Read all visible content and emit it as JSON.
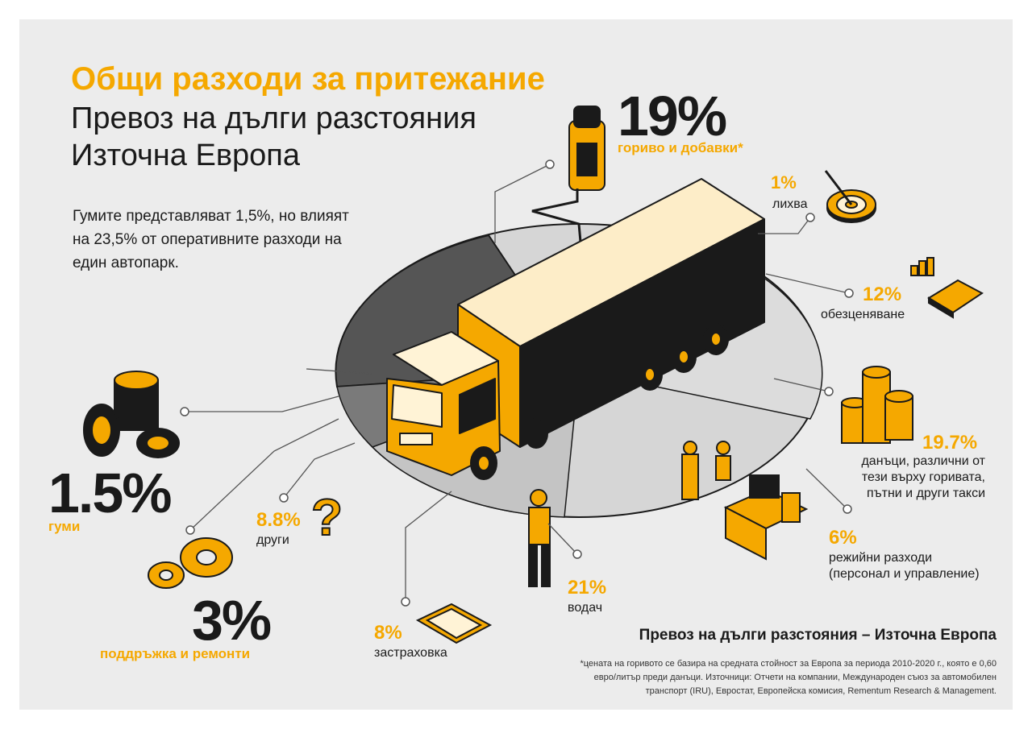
{
  "header": {
    "title": "Общи разходи за притежание",
    "subtitle_line1": "Превоз на дълги разстояния",
    "subtitle_line2": "Източна Европа"
  },
  "intro": "Гумите представляват 1,5%, но влияят на 23,5% от оперативните разходи на един автопарк.",
  "costs": {
    "fuel": {
      "percent": "19%",
      "label": "гориво и добавки*",
      "value": 19
    },
    "interest": {
      "percent": "1%",
      "label": "лихва",
      "value": 1
    },
    "depreciation": {
      "percent": "12%",
      "label": "обезценяване",
      "value": 12
    },
    "taxes": {
      "percent": "19.7%",
      "label_line1": "данъци, различни от",
      "label_line2": "тези върху горивата,",
      "label_line3": "пътни и други такси",
      "value": 19.7
    },
    "overhead": {
      "percent": "6%",
      "label_line1": "режийни разходи",
      "label_line2": "(персонал и управление)",
      "value": 6
    },
    "driver": {
      "percent": "21%",
      "label": "водач",
      "value": 21
    },
    "insurance": {
      "percent": "8%",
      "label": "застраховка",
      "value": 8
    },
    "maintenance": {
      "percent": "3%",
      "label": "поддръжка и ремонти",
      "value": 3
    },
    "other": {
      "percent": "8.8%",
      "label": "други",
      "value": 8.8
    },
    "tyres": {
      "percent": "1.5%",
      "label": "гуми",
      "value": 1.5
    }
  },
  "footer": {
    "heading": "Превоз на дълги разстояния – Източна Европа",
    "note_line1": "*цената на горивото се базира на средната стойност за Европа за периода 2010-2020 г., която е 0,60",
    "note_line2": "евро/литър преди данъци. Източници: Отчети на компании, Международен съюз за автомобилен",
    "note_line3": "транспорт (IRU), Евростат, Европейска комисия, Rementum Research & Management."
  },
  "colors": {
    "accent": "#f5a800",
    "dark": "#1a1a1a",
    "background": "#ececec"
  }
}
